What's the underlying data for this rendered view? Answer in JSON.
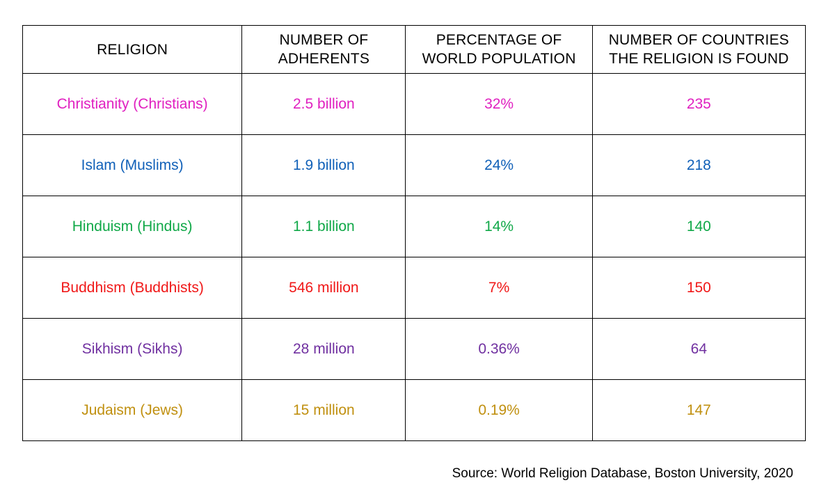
{
  "table": {
    "headers": [
      [
        "RELIGION"
      ],
      [
        "NUMBER OF",
        "ADHERENTS"
      ],
      [
        "PERCENTAGE OF",
        "WORLD POPULATION"
      ],
      [
        "NUMBER OF COUNTRIES",
        "THE RELIGION IS FOUND"
      ]
    ],
    "rows": [
      {
        "religion": "Christianity (Christians)",
        "adherents": "2.5 billion",
        "percentage": "32%",
        "countries": "235",
        "color": "#e020c0"
      },
      {
        "religion": "Islam (Muslims)",
        "adherents": "1.9 billion",
        "percentage": "24%",
        "countries": "218",
        "color": "#1060b8"
      },
      {
        "religion": "Hinduism (Hindus)",
        "adherents": "1.1 billion",
        "percentage": "14%",
        "countries": "140",
        "color": "#10a848"
      },
      {
        "religion": "Buddhism (Buddhists)",
        "adherents": "546 million",
        "percentage": "7%",
        "countries": "150",
        "color": "#f01818"
      },
      {
        "religion": "Sikhism (Sikhs)",
        "adherents": "28 million",
        "percentage": "0.36%",
        "countries": "64",
        "color": "#7030a0"
      },
      {
        "religion": "Judaism (Jews)",
        "adherents": "15 million",
        "percentage": "0.19%",
        "countries": "147",
        "color": "#c09010"
      }
    ]
  },
  "source": "Source: World Religion Database, Boston University, 2020"
}
